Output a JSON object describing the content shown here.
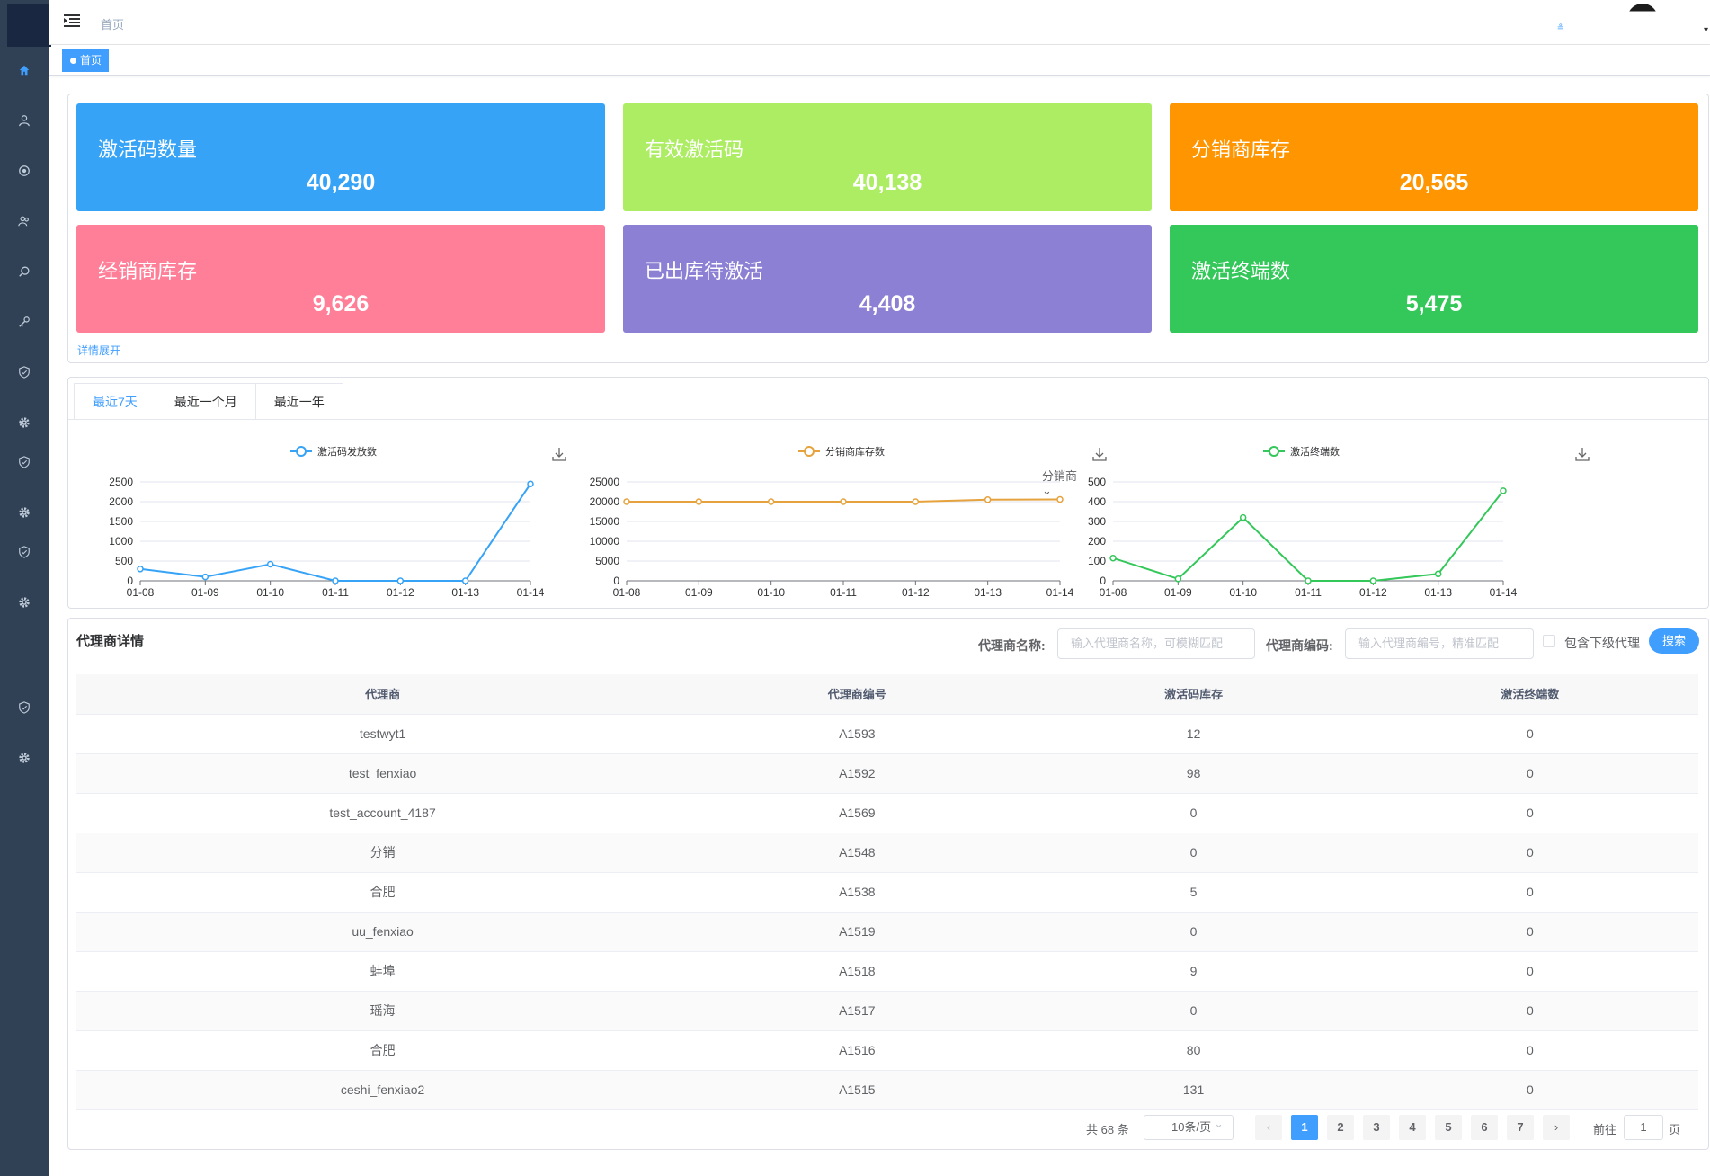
{
  "breadcrumb": {
    "current": "首页"
  },
  "header": {
    "user_mark": "≗"
  },
  "tags": [
    {
      "label": "首页"
    }
  ],
  "stats": [
    {
      "label": "激活码数量",
      "value": "40,290",
      "color": "#36a3f7"
    },
    {
      "label": "有效激活码",
      "value": "40,138",
      "color": "#aced63"
    },
    {
      "label": "分销商库存",
      "value": "20,565",
      "color": "#ff9500"
    },
    {
      "label": "经销商库存",
      "value": "9,626",
      "color": "#ff7f98"
    },
    {
      "label": "已出库待激活",
      "value": "4,408",
      "color": "#8c80d4"
    },
    {
      "label": "激活终端数",
      "value": "5,475",
      "color": "#34c759"
    }
  ],
  "stats_toggle": "详情展开",
  "tabs": [
    "最近7天",
    "最近一个月",
    "最近一年"
  ],
  "charts_select": "分销商",
  "chart_data": [
    {
      "type": "line",
      "legend": "激活码发放数",
      "color": "#36a3f7",
      "x": [
        "01-08",
        "01-09",
        "01-10",
        "01-11",
        "01-12",
        "01-13",
        "01-14"
      ],
      "values": [
        300,
        100,
        420,
        0,
        0,
        0,
        2450
      ],
      "yticks": [
        0,
        500,
        1000,
        1500,
        2000,
        2500
      ],
      "ylim": [
        0,
        2500
      ]
    },
    {
      "type": "line",
      "legend": "分销商库存数",
      "color": "#e6a23c",
      "x": [
        "01-08",
        "01-09",
        "01-10",
        "01-11",
        "01-12",
        "01-13",
        "01-14"
      ],
      "values": [
        20000,
        20000,
        20000,
        20000,
        20000,
        20500,
        20565
      ],
      "yticks": [
        0,
        5000,
        10000,
        15000,
        20000,
        25000
      ],
      "ylim": [
        0,
        25000
      ]
    },
    {
      "type": "line",
      "legend": "激活终端数",
      "color": "#34c759",
      "x": [
        "01-08",
        "01-09",
        "01-10",
        "01-11",
        "01-12",
        "01-13",
        "01-14"
      ],
      "values": [
        115,
        10,
        320,
        0,
        0,
        35,
        455
      ],
      "yticks": [
        0,
        100,
        200,
        300,
        400,
        500
      ],
      "ylim": [
        0,
        500
      ]
    }
  ],
  "agents": {
    "title": "代理商详情",
    "name_label": "代理商名称:",
    "name_placeholder": "输入代理商名称，可模糊匹配",
    "code_label": "代理商编码:",
    "code_placeholder": "输入代理商编号，精准匹配",
    "include_sub_label": "包含下级代理",
    "search_label": "搜索",
    "columns": [
      "代理商",
      "代理商编号",
      "激活码库存",
      "激活终端数"
    ],
    "rows": [
      [
        "testwyt1",
        "A1593",
        "12",
        "0"
      ],
      [
        "test_fenxiao",
        "A1592",
        "98",
        "0"
      ],
      [
        "test_account_4187",
        "A1569",
        "0",
        "0"
      ],
      [
        "分销",
        "A1548",
        "0",
        "0"
      ],
      [
        "合肥",
        "A1538",
        "5",
        "0"
      ],
      [
        "uu_fenxiao",
        "A1519",
        "0",
        "0"
      ],
      [
        "蚌埠",
        "A1518",
        "9",
        "0"
      ],
      [
        "瑶海",
        "A1517",
        "0",
        "0"
      ],
      [
        "合肥",
        "A1516",
        "80",
        "0"
      ],
      [
        "ceshi_fenxiao2",
        "A1515",
        "131",
        "0"
      ]
    ]
  },
  "pager": {
    "total_text": "共 68 条",
    "page_size": "10条/页",
    "pages": [
      "1",
      "2",
      "3",
      "4",
      "5",
      "6",
      "7"
    ],
    "current_page": "1",
    "goto_label": "前往",
    "goto_value": "1",
    "goto_unit": "页"
  }
}
